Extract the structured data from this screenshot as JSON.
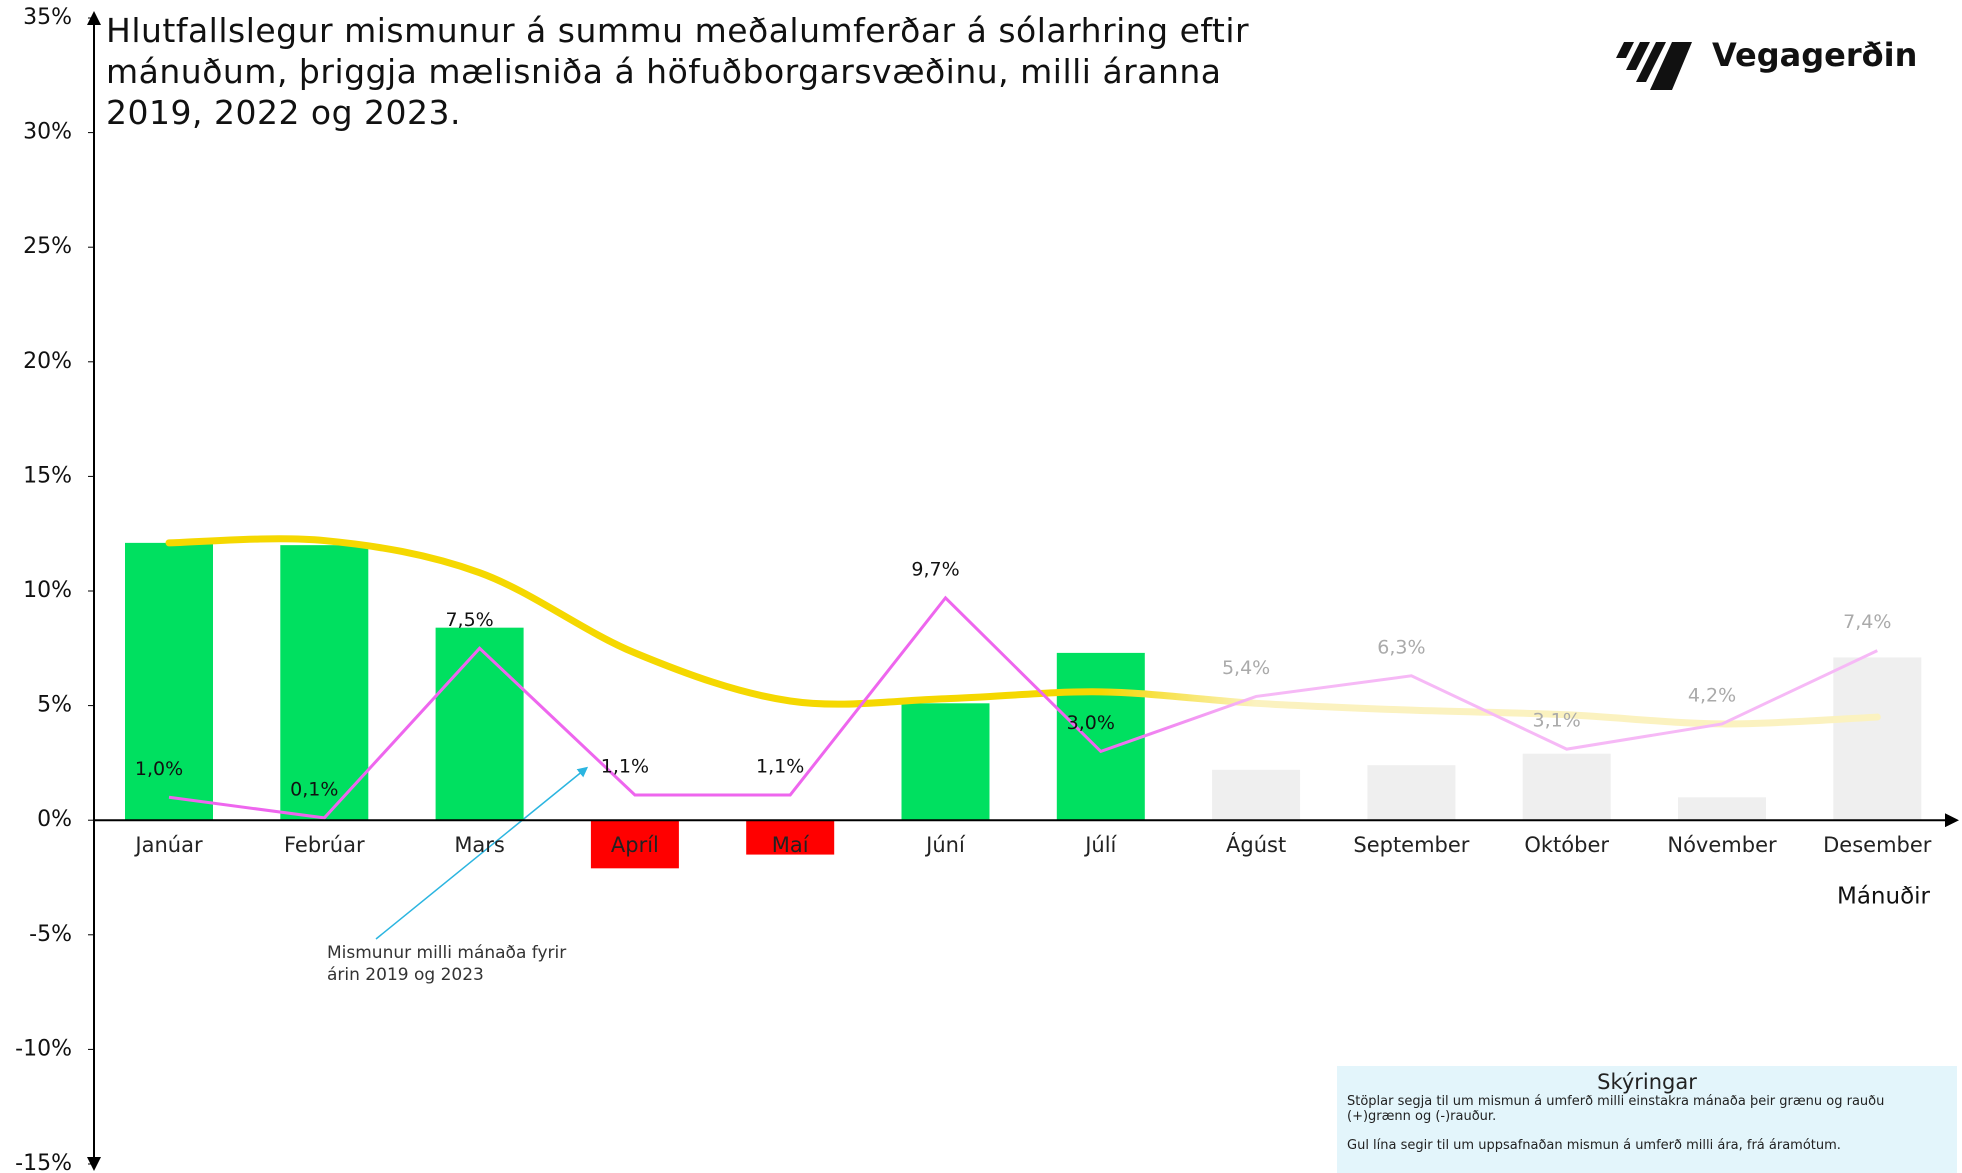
{
  "chart_data": {
    "type": "bar",
    "title": "Hlutfallslegur mismunur á summu meðalumferðar á sólarhring eftir mánuðum, þriggja mælisniða á höfuðborgarsvæðinu, milli áranna 2019, 2022 og 2023.",
    "logo": "Vegagerðin",
    "x_label": "Mánuðir",
    "categories": [
      "Janúar",
      "Febrúar",
      "Mars",
      "Apríl",
      "Maí",
      "Júní",
      "Júlí",
      "Ágúst",
      "September",
      "Október",
      "Nóvember",
      "Desember"
    ],
    "ylim": [
      -15,
      35
    ],
    "yticks": [
      {
        "value": -15,
        "label": "-15%"
      },
      {
        "value": -10,
        "label": "-10%"
      },
      {
        "value": -5,
        "label": "-5%"
      },
      {
        "value": 0,
        "label": "0%"
      },
      {
        "value": 5,
        "label": "5%"
      },
      {
        "value": 10,
        "label": "10%"
      },
      {
        "value": 15,
        "label": "15%"
      },
      {
        "value": 20,
        "label": "20%"
      },
      {
        "value": 25,
        "label": "25%"
      },
      {
        "value": 30,
        "label": "30%"
      },
      {
        "value": 35,
        "label": "35%"
      }
    ],
    "series": [
      {
        "type": "bar",
        "values": [
          12.1,
          12.0,
          8.4,
          -2.1,
          -1.5,
          5.1,
          7.3,
          2.2,
          2.4,
          2.9,
          1.0,
          7.1
        ],
        "colors": [
          "#00e060",
          "#00e060",
          "#00e060",
          "#ff0000",
          "#ff0000",
          "#00e060",
          "#00e060",
          "#efefef",
          "#efefef",
          "#efefef",
          "#efefef",
          "#efefef"
        ]
      },
      {
        "type": "line",
        "values": [
          1.0,
          0.1,
          7.5,
          1.1,
          1.1,
          9.7,
          3.0,
          5.4,
          6.3,
          3.1,
          4.2,
          7.4
        ],
        "value_labels": [
          "1,0%",
          "0,1%",
          "7,5%",
          "1,1%",
          "1,1%",
          "9,7%",
          "3,0%",
          "5,4%",
          "6,3%",
          "3,1%",
          "4,2%",
          "7,4%"
        ],
        "colors": [
          "#ee66ee",
          "#ee66ee",
          "#ee66ee",
          "#ee66ee",
          "#ee66ee",
          "#ee66ee",
          "#ee66ee",
          "#f6b9f6",
          "#f6b9f6",
          "#f6b9f6",
          "#f6b9f6",
          "#f6b9f6"
        ],
        "label_colors": [
          "#111111",
          "#111111",
          "#111111",
          "#111111",
          "#111111",
          "#111111",
          "#111111",
          "#aaaaaa",
          "#aaaaaa",
          "#aaaaaa",
          "#aaaaaa",
          "#aaaaaa"
        ]
      },
      {
        "type": "curve",
        "values": [
          12.1,
          12.2,
          10.8,
          7.3,
          5.2,
          5.3,
          5.6,
          5.1,
          4.8,
          4.6,
          4.2,
          4.5
        ],
        "colors": [
          "#f5d800",
          "#f5d800",
          "#f5d800",
          "#f5d800",
          "#f5d800",
          "#f5d800",
          "#f5d800",
          "#fbf2c0",
          "#fbf2c0",
          "#fbf2c0",
          "#fbf2c0",
          "#fbf2c0"
        ]
      }
    ],
    "annotation": "Mismunur milli mánaða fyrir árin 2019 og 2023",
    "notes": {
      "title": "Skýringar",
      "lines": [
        "Stöplar segja til um mismun á umferð milli einstakra mánaða  þeir grænu og rauðu (+)grænn og (-)rauður.",
        "Gul lína segir til um uppsafnaðan mismun á umferð milli ára, frá áramótum."
      ]
    }
  }
}
